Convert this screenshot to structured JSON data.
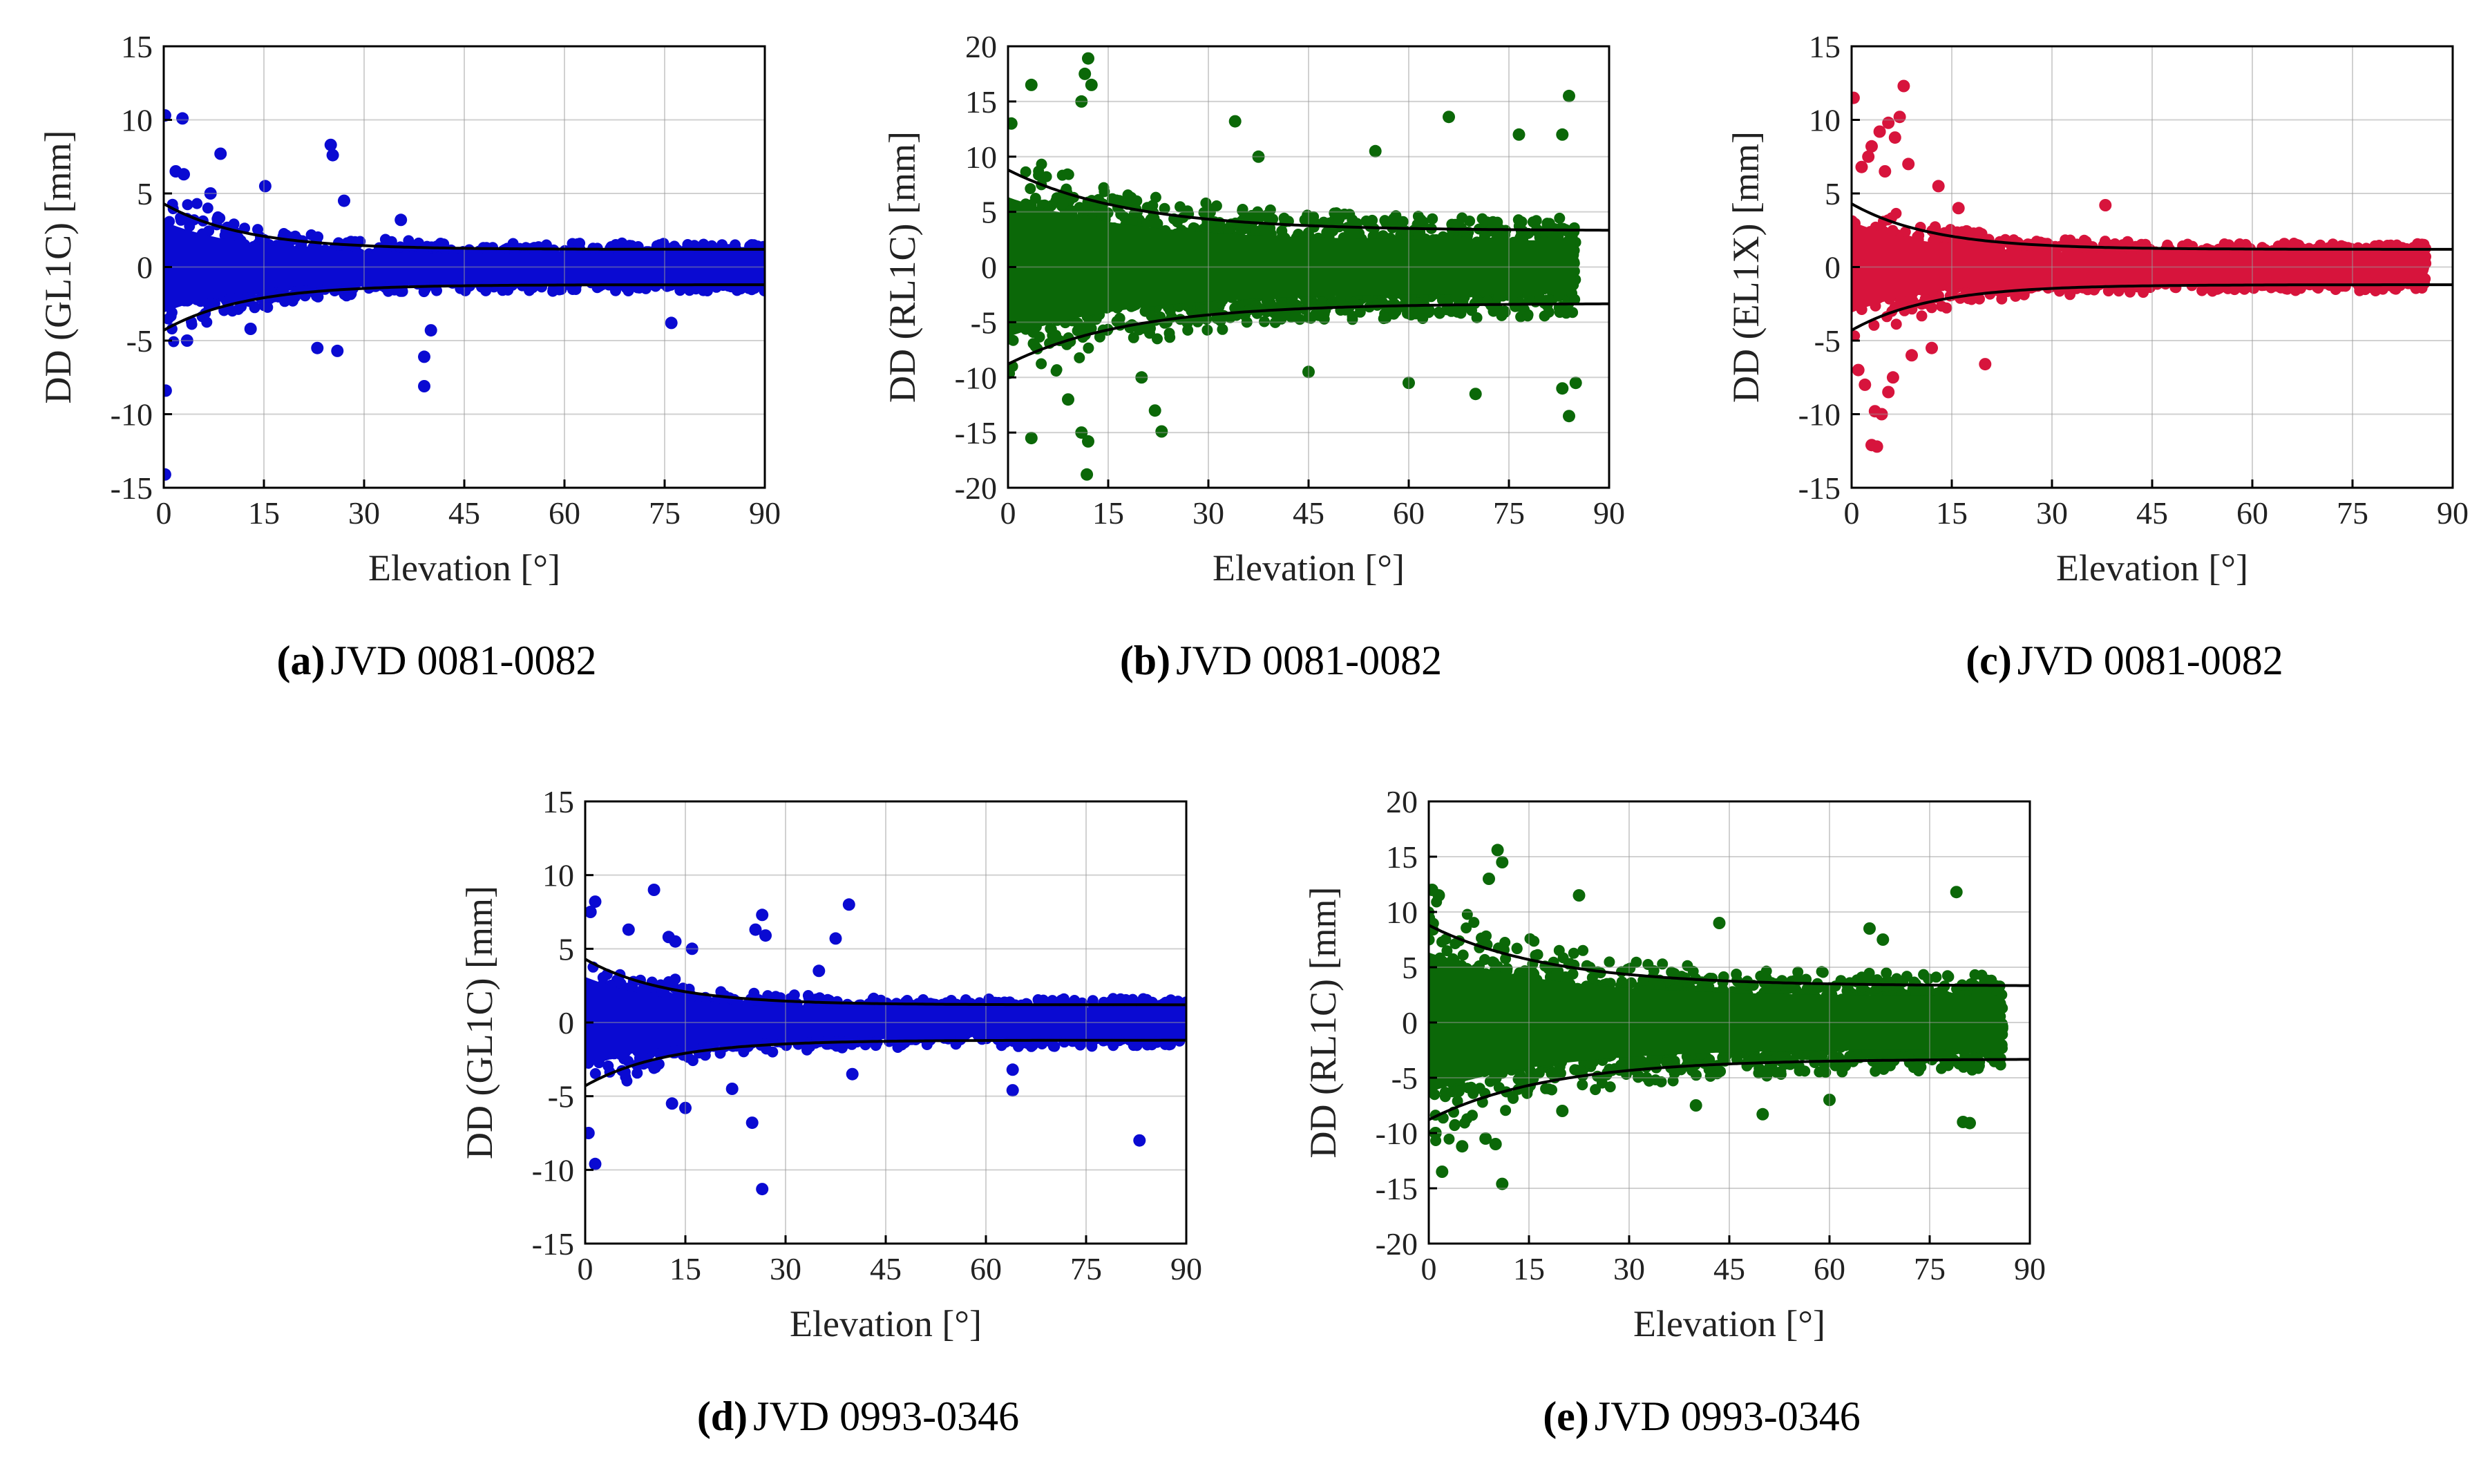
{
  "chart_data": [
    {
      "id": "a",
      "type": "scatter",
      "caption_letter": "(a)",
      "caption_text": "JVD 0081-0082",
      "xlabel": "Elevation [°]",
      "ylabel": "DD (GL1C) [mm]",
      "xlim": [
        0,
        90
      ],
      "ylim": [
        -15,
        15
      ],
      "xticks": [
        "0",
        "15",
        "30",
        "45",
        "60",
        "75",
        "90"
      ],
      "yticks": [
        "15",
        "10",
        "5",
        "0",
        "-5",
        "-10",
        "-15"
      ],
      "color": "#0a0ad2",
      "envelope": {
        "low_elev_bound": 4.3,
        "high_elev_bound": 1.2,
        "decay_deg": 12
      },
      "elev_max": 90,
      "outliers": [
        [
          0.2,
          10.3
        ],
        [
          2.8,
          10.1
        ],
        [
          8.5,
          7.7
        ],
        [
          25.0,
          8.3
        ],
        [
          25.3,
          7.6
        ],
        [
          0.2,
          -14.1
        ],
        [
          0.3,
          -8.4
        ],
        [
          39.0,
          -8.1
        ],
        [
          39.0,
          -6.1
        ],
        [
          15.2,
          5.5
        ],
        [
          27.0,
          4.5
        ],
        [
          13.0,
          -4.2
        ],
        [
          40.0,
          -4.3
        ],
        [
          35.5,
          3.2
        ],
        [
          1.8,
          6.5
        ],
        [
          3.0,
          6.3
        ],
        [
          3.5,
          -5.0
        ],
        [
          23.0,
          -5.5
        ],
        [
          26.0,
          -5.7
        ],
        [
          7.0,
          5.0
        ],
        [
          76.0,
          -3.8
        ]
      ],
      "grid": true
    },
    {
      "id": "b",
      "type": "scatter",
      "caption_letter": "(b)",
      "caption_text": "JVD 0081-0082",
      "xlabel": "Elevation [°]",
      "ylabel": "DD (RL1C) [mm]",
      "xlim": [
        0,
        90
      ],
      "ylim": [
        -20,
        20
      ],
      "xticks": [
        "0",
        "15",
        "30",
        "45",
        "60",
        "75",
        "90"
      ],
      "yticks": [
        "20",
        "15",
        "10",
        "5",
        "0",
        "-5",
        "-10",
        "-15",
        "-20"
      ],
      "color": "#0b6808",
      "envelope": {
        "low_elev_bound": 8.8,
        "high_elev_bound": 3.3,
        "decay_deg": 18
      },
      "elev_max": 85,
      "outliers": [
        [
          12.0,
          18.9
        ],
        [
          11.5,
          17.5
        ],
        [
          12.5,
          16.5
        ],
        [
          11.0,
          15.0
        ],
        [
          3.5,
          16.5
        ],
        [
          0.5,
          13.0
        ],
        [
          34.0,
          13.2
        ],
        [
          66.0,
          13.6
        ],
        [
          84.0,
          15.5
        ],
        [
          83.0,
          12.0
        ],
        [
          11.8,
          -18.8
        ],
        [
          12.0,
          -15.8
        ],
        [
          11.0,
          -15.0
        ],
        [
          3.5,
          -15.5
        ],
        [
          23.0,
          -14.9
        ],
        [
          22.0,
          -13.0
        ],
        [
          84.0,
          -13.5
        ],
        [
          83.0,
          -11.0
        ],
        [
          70.0,
          -11.5
        ],
        [
          85.0,
          -10.5
        ],
        [
          9.0,
          -12.0
        ],
        [
          60.0,
          -10.5
        ],
        [
          55.0,
          10.5
        ],
        [
          37.5,
          10.0
        ],
        [
          76.5,
          12.0
        ],
        [
          20.0,
          -10.0
        ],
        [
          45.0,
          -9.5
        ]
      ],
      "grid": true
    },
    {
      "id": "c",
      "type": "scatter",
      "caption_letter": "(c)",
      "caption_text": "JVD 0081-0082",
      "xlabel": "Elevation [°]",
      "ylabel": "DD (EL1X) [mm]",
      "xlim": [
        0,
        90
      ],
      "ylim": [
        -15,
        15
      ],
      "xticks": [
        "0",
        "15",
        "30",
        "45",
        "60",
        "75",
        "90"
      ],
      "yticks": [
        "15",
        "10",
        "5",
        "0",
        "-5",
        "-10",
        "-15"
      ],
      "color": "#d7143c",
      "envelope": {
        "low_elev_bound": 4.3,
        "high_elev_bound": 1.2,
        "decay_deg": 12
      },
      "elev_max": 86,
      "outliers": [
        [
          0.3,
          11.5
        ],
        [
          7.8,
          12.3
        ],
        [
          7.2,
          10.2
        ],
        [
          5.5,
          9.8
        ],
        [
          4.2,
          9.2
        ],
        [
          6.5,
          8.8
        ],
        [
          3.0,
          8.2
        ],
        [
          2.5,
          7.5
        ],
        [
          1.5,
          6.8
        ],
        [
          8.5,
          7.0
        ],
        [
          5.0,
          6.5
        ],
        [
          3.8,
          -12.2
        ],
        [
          3.0,
          -12.1
        ],
        [
          4.5,
          -10.0
        ],
        [
          3.5,
          -9.8
        ],
        [
          2.0,
          -8.0
        ],
        [
          1.0,
          -7.0
        ],
        [
          5.5,
          -8.5
        ],
        [
          6.2,
          -7.5
        ],
        [
          9.0,
          -6.0
        ],
        [
          12.0,
          -5.5
        ],
        [
          20.0,
          -6.6
        ],
        [
          38.0,
          4.2
        ],
        [
          13.0,
          5.5
        ],
        [
          16.0,
          4.0
        ]
      ],
      "grid": true
    },
    {
      "id": "d",
      "type": "scatter",
      "caption_letter": "(d)",
      "caption_text": "JVD 0993-0346",
      "xlabel": "Elevation [°]",
      "ylabel": "DD (GL1C) [mm]",
      "xlim": [
        0,
        90
      ],
      "ylim": [
        -15,
        15
      ],
      "xticks": [
        "0",
        "15",
        "30",
        "45",
        "60",
        "75",
        "90"
      ],
      "yticks": [
        "15",
        "10",
        "5",
        "0",
        "-5",
        "-10",
        "-15"
      ],
      "color": "#0a0ad2",
      "envelope": {
        "low_elev_bound": 4.3,
        "high_elev_bound": 1.2,
        "decay_deg": 12
      },
      "elev_max": 90,
      "outliers": [
        [
          10.3,
          9.0
        ],
        [
          39.5,
          8.0
        ],
        [
          26.5,
          7.3
        ],
        [
          25.5,
          6.3
        ],
        [
          27.0,
          5.9
        ],
        [
          12.5,
          5.8
        ],
        [
          13.5,
          5.5
        ],
        [
          1.5,
          8.2
        ],
        [
          0.8,
          7.5
        ],
        [
          6.5,
          6.3
        ],
        [
          16.0,
          5.0
        ],
        [
          37.5,
          5.7
        ],
        [
          1.5,
          -9.6
        ],
        [
          26.5,
          -11.3
        ],
        [
          25.0,
          -6.8
        ],
        [
          83.0,
          -8.0
        ],
        [
          64.0,
          -4.6
        ],
        [
          64.0,
          -3.2
        ],
        [
          0.5,
          -7.5
        ],
        [
          15.0,
          -5.8
        ],
        [
          13.0,
          -5.5
        ],
        [
          40.0,
          -3.5
        ],
        [
          22.0,
          -4.5
        ],
        [
          35.0,
          3.5
        ]
      ],
      "grid": true
    },
    {
      "id": "e",
      "type": "scatter",
      "caption_letter": "(e)",
      "caption_text": "JVD 0993-0346",
      "xlabel": "Elevation [°]",
      "ylabel": "DD (RL1C) [mm]",
      "xlim": [
        0,
        90
      ],
      "ylim": [
        -20,
        20
      ],
      "xticks": [
        "0",
        "15",
        "30",
        "45",
        "60",
        "75",
        "90"
      ],
      "yticks": [
        "20",
        "15",
        "10",
        "5",
        "0",
        "-5",
        "-10",
        "-15",
        "-20"
      ],
      "color": "#0b6808",
      "envelope": {
        "low_elev_bound": 8.8,
        "high_elev_bound": 3.3,
        "decay_deg": 18
      },
      "elev_max": 86,
      "outliers": [
        [
          10.3,
          15.6
        ],
        [
          11.0,
          14.5
        ],
        [
          9.0,
          13.0
        ],
        [
          0.5,
          12.0
        ],
        [
          1.5,
          11.5
        ],
        [
          22.5,
          11.5
        ],
        [
          79.0,
          11.8
        ],
        [
          43.5,
          9.0
        ],
        [
          66.0,
          8.5
        ],
        [
          68.0,
          7.5
        ],
        [
          2.0,
          -13.5
        ],
        [
          11.0,
          -14.6
        ],
        [
          10.0,
          -11.0
        ],
        [
          8.5,
          -10.5
        ],
        [
          1.0,
          -10.0
        ],
        [
          80.0,
          -9.0
        ],
        [
          81.0,
          -9.1
        ],
        [
          50.0,
          -8.3
        ],
        [
          40.0,
          -7.5
        ],
        [
          20.0,
          -8.0
        ],
        [
          60.0,
          -7.0
        ],
        [
          5.0,
          -11.2
        ]
      ],
      "grid": true
    }
  ]
}
